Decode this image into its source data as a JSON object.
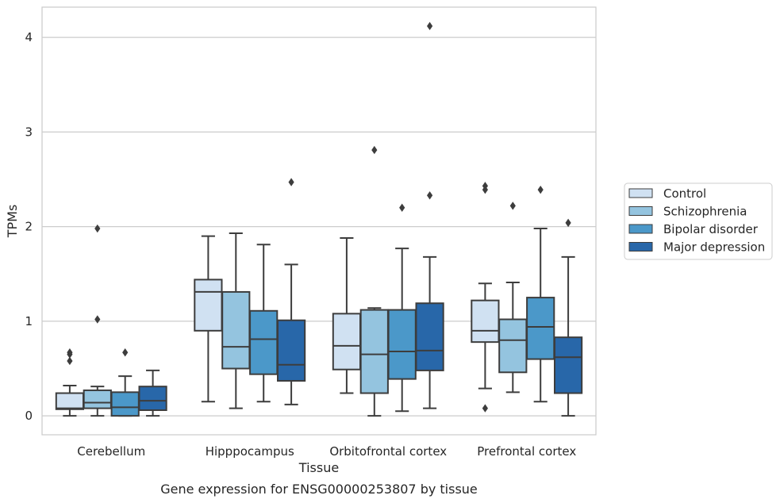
{
  "chart_data": {
    "type": "box",
    "title": "",
    "caption": "Gene expression for ENSG00000253807 by tissue",
    "xlabel": "Tissue",
    "ylabel": "TPMs",
    "ylim": [
      -0.2,
      4.32
    ],
    "yticks": [
      0,
      1,
      2,
      3,
      4
    ],
    "ytick_labels": [
      "0",
      "1",
      "2",
      "3",
      "4"
    ],
    "grid": "horizontal",
    "legend_position": "right",
    "categories": [
      "Cerebellum",
      "Hipppocampus",
      "Orbitofrontal cortex",
      "Prefrontal cortex"
    ],
    "series": [
      {
        "name": "Control",
        "color": "#d0e1f2",
        "boxes": [
          {
            "whisker_low": 0.0,
            "q1": 0.07,
            "median": 0.08,
            "q3": 0.24,
            "whisker_high": 0.32,
            "outliers": [
              0.58,
              0.65,
              0.67
            ]
          },
          {
            "whisker_low": 0.15,
            "q1": 0.9,
            "median": 1.31,
            "q3": 1.44,
            "whisker_high": 1.9,
            "outliers": []
          },
          {
            "whisker_low": 0.24,
            "q1": 0.49,
            "median": 0.74,
            "q3": 1.08,
            "whisker_high": 1.88,
            "outliers": []
          },
          {
            "whisker_low": 0.29,
            "q1": 0.78,
            "median": 0.9,
            "q3": 1.22,
            "whisker_high": 1.4,
            "outliers": [
              0.08,
              2.39,
              2.43
            ]
          }
        ]
      },
      {
        "name": "Schizophrenia",
        "color": "#94c4df",
        "boxes": [
          {
            "whisker_low": 0.0,
            "q1": 0.08,
            "median": 0.14,
            "q3": 0.27,
            "whisker_high": 0.31,
            "outliers": [
              1.02,
              1.98
            ]
          },
          {
            "whisker_low": 0.08,
            "q1": 0.5,
            "median": 0.73,
            "q3": 1.31,
            "whisker_high": 1.93,
            "outliers": []
          },
          {
            "whisker_low": 0.0,
            "q1": 0.24,
            "median": 0.65,
            "q3": 1.12,
            "whisker_high": 1.14,
            "outliers": [
              2.81
            ]
          },
          {
            "whisker_low": 0.25,
            "q1": 0.46,
            "median": 0.8,
            "q3": 1.02,
            "whisker_high": 1.41,
            "outliers": [
              2.22
            ]
          }
        ]
      },
      {
        "name": "Bipolar disorder",
        "color": "#4b98c9",
        "boxes": [
          {
            "whisker_low": 0.0,
            "q1": 0.0,
            "median": 0.09,
            "q3": 0.25,
            "whisker_high": 0.42,
            "outliers": [
              0.67
            ]
          },
          {
            "whisker_low": 0.15,
            "q1": 0.44,
            "median": 0.81,
            "q3": 1.11,
            "whisker_high": 1.81,
            "outliers": []
          },
          {
            "whisker_low": 0.05,
            "q1": 0.39,
            "median": 0.68,
            "q3": 1.12,
            "whisker_high": 1.77,
            "outliers": [
              2.2
            ]
          },
          {
            "whisker_low": 0.15,
            "q1": 0.6,
            "median": 0.94,
            "q3": 1.25,
            "whisker_high": 1.98,
            "outliers": [
              2.39
            ]
          }
        ]
      },
      {
        "name": "Major depression",
        "color": "#2867a9",
        "boxes": [
          {
            "whisker_low": 0.0,
            "q1": 0.06,
            "median": 0.16,
            "q3": 0.31,
            "whisker_high": 0.48,
            "outliers": []
          },
          {
            "whisker_low": 0.12,
            "q1": 0.37,
            "median": 0.54,
            "q3": 1.01,
            "whisker_high": 1.6,
            "outliers": [
              2.47
            ]
          },
          {
            "whisker_low": 0.08,
            "q1": 0.48,
            "median": 0.69,
            "q3": 1.19,
            "whisker_high": 1.68,
            "outliers": [
              2.33,
              4.12
            ]
          },
          {
            "whisker_low": 0.0,
            "q1": 0.24,
            "median": 0.62,
            "q3": 0.83,
            "whisker_high": 1.68,
            "outliers": [
              2.04
            ]
          }
        ]
      }
    ]
  }
}
